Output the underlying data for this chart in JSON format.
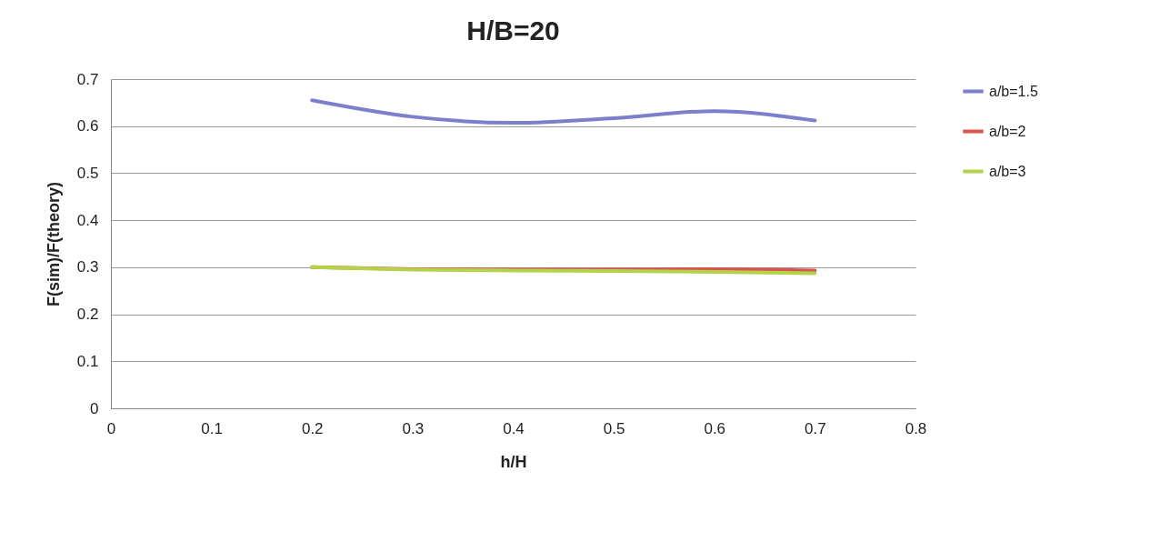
{
  "chart_data": {
    "type": "line",
    "title": "H/B=20",
    "xlabel": "h/H",
    "ylabel": "F(sim)/F(theory)",
    "x": [
      0.2,
      0.3,
      0.4,
      0.5,
      0.6,
      0.7
    ],
    "series": [
      {
        "name": "a/b=1.5",
        "color": "#7b7fcc",
        "values": [
          0.655,
          0.62,
          0.607,
          0.617,
          0.632,
          0.612
        ]
      },
      {
        "name": "a/b=2",
        "color": "#d9534f",
        "values": [
          0.3,
          0.296,
          0.295,
          0.295,
          0.296,
          0.293
        ]
      },
      {
        "name": "a/b=3",
        "color": "#b5d34a",
        "values": [
          0.3,
          0.295,
          0.293,
          0.292,
          0.29,
          0.287
        ]
      }
    ],
    "xlim": [
      0,
      0.8
    ],
    "xticks": [
      0,
      0.1,
      0.2,
      0.3,
      0.4,
      0.5,
      0.6,
      0.7,
      0.8
    ],
    "ylim": [
      0,
      0.7
    ],
    "yticks": [
      0,
      0.1,
      0.2,
      0.3,
      0.4,
      0.5,
      0.6,
      0.7
    ],
    "grid": "y",
    "legend": "right",
    "marker": "none",
    "line_style": "solid"
  }
}
